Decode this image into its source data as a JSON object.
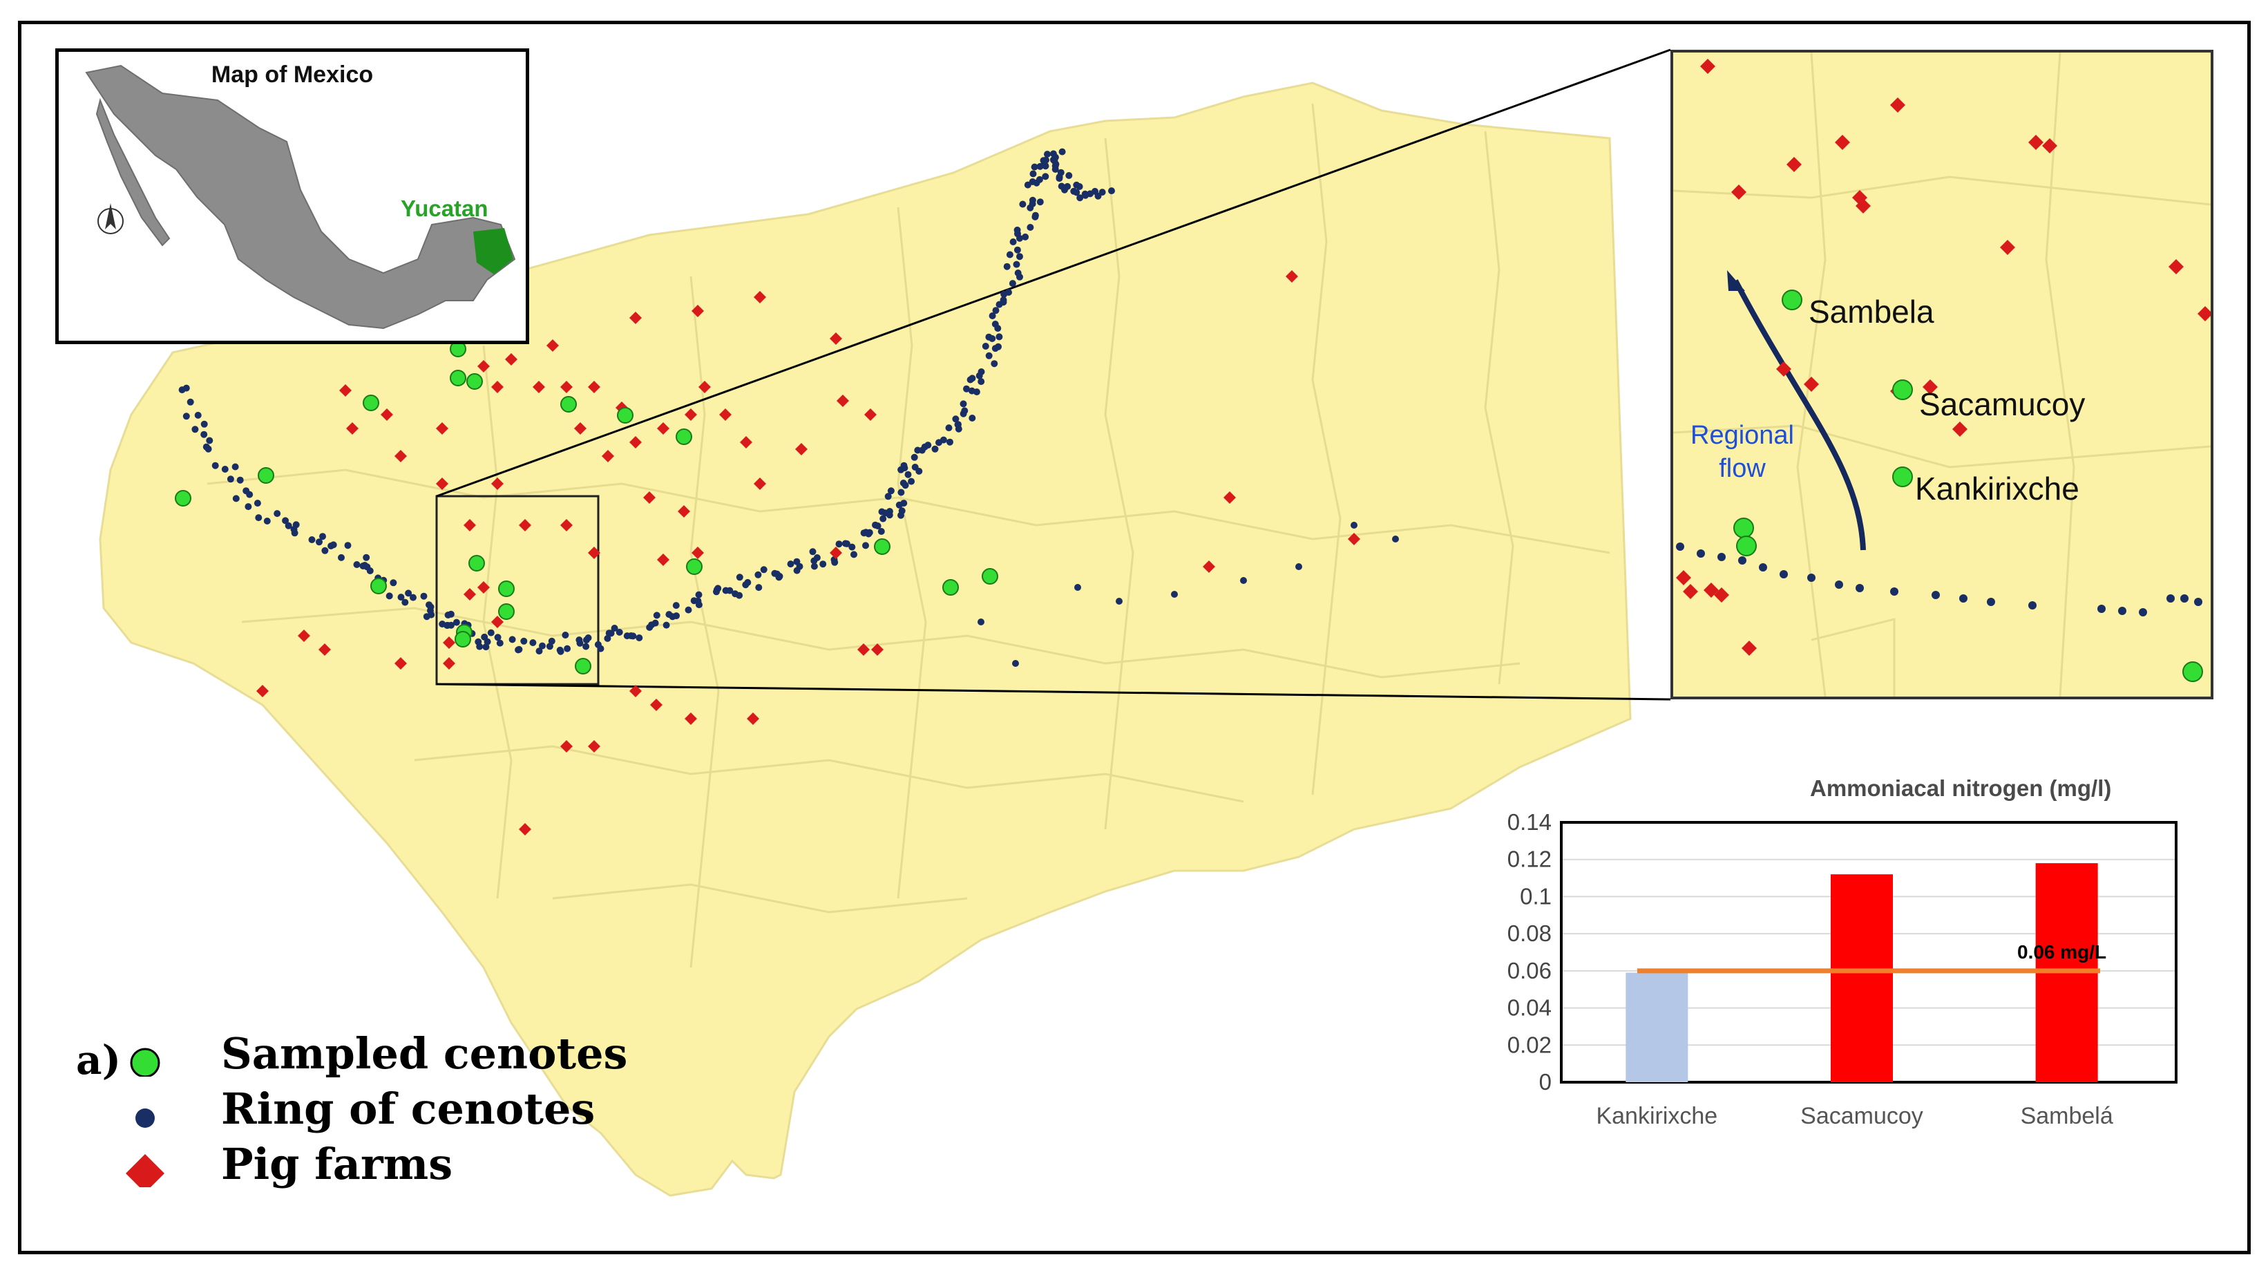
{
  "legend": {
    "prefix": "a)",
    "items": [
      {
        "label": "Sampled cenotes",
        "symbol": "green-circle",
        "color": "#33dd33"
      },
      {
        "label": "Ring of cenotes",
        "symbol": "navy-dot",
        "color": "#1a2e66"
      },
      {
        "label": "Pig farms",
        "symbol": "red-diamond",
        "color": "#d91a1a"
      }
    ]
  },
  "mexico_inset": {
    "title": "Map of Mexico",
    "highlight_label": "Yucatan",
    "highlight_color": "#1d8f1d",
    "country_color": "#8c8c8c"
  },
  "zoom_inset": {
    "sites": [
      "Sambela",
      "Sacamucoy",
      "Kankirixche"
    ],
    "flow_label_line1": "Regional",
    "flow_label_line2": "flow",
    "flow_color": "#15295e"
  },
  "colors": {
    "state_fill": "#fbf2a8",
    "municipal_lines": "#e2d98e",
    "pig_farm": "#d91a1a",
    "ring_cenote": "#1a2e66",
    "sampled_cenote": "#33dd33"
  },
  "chart_data": {
    "type": "bar",
    "title": "Ammoniacal nitrogen (mg/l)",
    "categories": [
      "Kankirixche",
      "Sacamucoy",
      "Sambelá"
    ],
    "values": [
      0.059,
      0.112,
      0.118
    ],
    "bar_colors": [
      "#b4c7e7",
      "#ff0000",
      "#ff0000"
    ],
    "ylim": [
      0,
      0.14
    ],
    "yticks": [
      "0",
      "0.02",
      "0.04",
      "0.06",
      "0.08",
      "0.1",
      "0.12",
      "0.14"
    ],
    "grid": true,
    "reference_line": {
      "value": 0.06,
      "label": "0.06 mg/L",
      "color": "#f07f2a"
    }
  }
}
